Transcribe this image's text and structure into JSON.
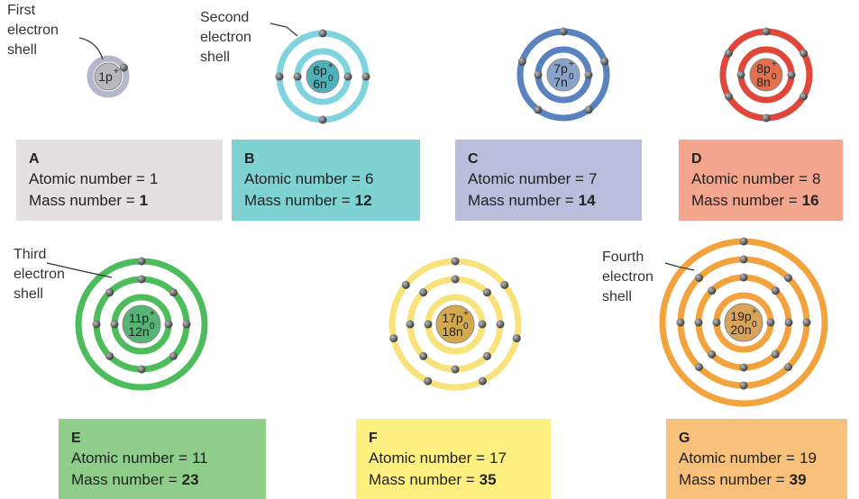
{
  "annotations": [
    {
      "lines": [
        "First",
        "electron",
        "shell"
      ]
    },
    {
      "lines": [
        "Second",
        "electron",
        "shell"
      ]
    },
    {
      "lines": [
        "Third",
        "electron",
        "shell"
      ]
    },
    {
      "lines": [
        "Fourth",
        "electron",
        "shell"
      ]
    }
  ],
  "atoms": [
    {
      "letter": "A",
      "protons": "1p",
      "proton_charge": "+",
      "atomic_label": "Atomic number =",
      "atomic_number": 1,
      "mass_label": "Mass number =",
      "mass_number": 1,
      "electrons_per_shell": [
        1
      ]
    },
    {
      "letter": "B",
      "protons": "6p",
      "proton_charge": "+",
      "neutrons": "6n",
      "neutron_charge": "0",
      "atomic_label": "Atomic number =",
      "atomic_number": 6,
      "mass_label": "Mass number =",
      "mass_number": 12,
      "electrons_per_shell": [
        2,
        4
      ]
    },
    {
      "letter": "C",
      "protons": "7p",
      "proton_charge": "+",
      "neutrons": "7n",
      "neutron_charge": "0",
      "atomic_label": "Atomic number =",
      "atomic_number": 7,
      "mass_label": "Mass number =",
      "mass_number": 14,
      "electrons_per_shell": [
        2,
        5
      ]
    },
    {
      "letter": "D",
      "protons": "8p",
      "proton_charge": "+",
      "neutrons": "8n",
      "neutron_charge": "0",
      "atomic_label": "Atomic number =",
      "atomic_number": 8,
      "mass_label": "Mass number =",
      "mass_number": 16,
      "electrons_per_shell": [
        2,
        6
      ]
    },
    {
      "letter": "E",
      "protons": "11p",
      "proton_charge": "+",
      "neutrons": "12n",
      "neutron_charge": "0",
      "atomic_label": "Atomic number =",
      "atomic_number": 11,
      "mass_label": "Mass number =",
      "mass_number": 23,
      "electrons_per_shell": [
        2,
        8,
        1
      ]
    },
    {
      "letter": "F",
      "protons": "17p",
      "proton_charge": "+",
      "neutrons": "18n",
      "neutron_charge": "0",
      "atomic_label": "Atomic number =",
      "atomic_number": 17,
      "mass_label": "Mass number =",
      "mass_number": 35,
      "electrons_per_shell": [
        2,
        8,
        7
      ]
    },
    {
      "letter": "G",
      "protons": "19p",
      "proton_charge": "+",
      "neutrons": "20n",
      "neutron_charge": "0",
      "atomic_label": "Atomic number =",
      "atomic_number": 19,
      "mass_label": "Mass number =",
      "mass_number": 39,
      "electrons_per_shell": [
        2,
        8,
        8,
        1
      ]
    }
  ]
}
